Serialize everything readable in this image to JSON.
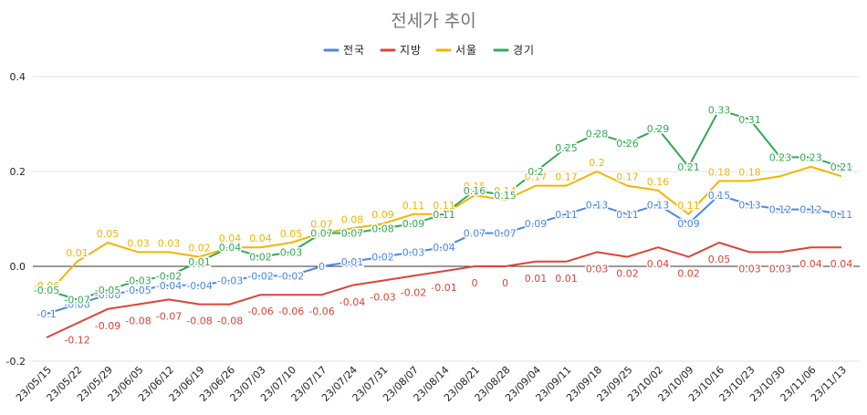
{
  "chart_data": {
    "type": "line",
    "title": "전세가 추이",
    "xlabel": "",
    "ylabel": "",
    "ylim": [
      -0.2,
      0.4
    ],
    "yticks": [
      -0.2,
      0.0,
      0.2,
      0.4
    ],
    "ytick_labels": [
      "-0.2",
      "0.0",
      "0.2",
      "0.4"
    ],
    "grid": true,
    "legend_position": "top-center",
    "categories": [
      "23/05/15",
      "23/05/22",
      "23/05/29",
      "23/06/05",
      "23/06/12",
      "23/06/19",
      "23/06/26",
      "23/07/03",
      "23/07/10",
      "23/07/17",
      "23/07/24",
      "23/07/31",
      "23/08/07",
      "23/08/14",
      "23/08/21",
      "23/08/28",
      "23/09/04",
      "23/09/11",
      "23/09/18",
      "23/09/25",
      "23/10/02",
      "23/10/09",
      "23/10/16",
      "23/10/23",
      "23/10/30",
      "23/11/06",
      "23/11/13"
    ],
    "series": [
      {
        "name": "전국",
        "color": "#4a86e8",
        "values": [
          -0.1,
          -0.08,
          -0.06,
          -0.05,
          -0.04,
          -0.04,
          -0.03,
          -0.02,
          -0.02,
          0,
          0.01,
          0.02,
          0.03,
          0.04,
          0.07,
          0.07,
          0.09,
          0.11,
          0.13,
          0.11,
          0.13,
          0.09,
          0.15,
          0.13,
          0.12,
          0.12,
          0.11
        ],
        "labels": [
          "-0.1",
          "-0.08",
          "-0.06",
          "-0.05",
          "-0.04",
          "-0.04",
          "-0.03",
          "-0.02",
          "-0.02",
          "0",
          "0.01",
          "0.02",
          "0.03",
          "0.04",
          "0.07",
          "0.07",
          "0.09",
          "0.11",
          "0.13",
          "0.11",
          "0.13",
          "0.09",
          "0.15",
          "0.13",
          "0.12",
          "0.12",
          "0.11"
        ]
      },
      {
        "name": "지방",
        "color": "#db4437",
        "values": [
          -0.15,
          -0.12,
          -0.09,
          -0.08,
          -0.07,
          -0.08,
          -0.08,
          -0.06,
          -0.06,
          -0.06,
          -0.04,
          -0.03,
          -0.02,
          -0.01,
          0,
          0,
          0.01,
          0.01,
          0.03,
          0.02,
          0.04,
          0.02,
          0.05,
          0.03,
          0.03,
          0.04,
          0.04
        ],
        "labels": [
          "",
          "-0.12",
          "-0.09",
          "-0.08",
          "-0.07",
          "-0.08",
          "-0.08",
          "-0.06",
          "-0.06",
          "-0.06",
          "-0.04",
          "-0.03",
          "-0.02",
          "-0.01",
          "0",
          "0",
          "0.01",
          "0.01",
          "0.03",
          "0.02",
          "0.04",
          "0.02",
          "0.05",
          "0.03",
          "0.03",
          "0.04",
          "0.04"
        ]
      },
      {
        "name": "서울",
        "color": "#f4b400",
        "values": [
          -0.06,
          0.01,
          0.05,
          0.03,
          0.03,
          0.02,
          0.04,
          0.04,
          0.05,
          0.07,
          0.08,
          0.09,
          0.11,
          0.11,
          0.15,
          0.14,
          0.17,
          0.17,
          0.2,
          0.17,
          0.16,
          0.11,
          0.18,
          0.18,
          0.19,
          0.21,
          0.19
        ],
        "labels": [
          "-0.06",
          "0.01",
          "0.05",
          "0.03",
          "0.03",
          "0.02",
          "0.04",
          "0.04",
          "0.05",
          "0.07",
          "0.08",
          "0.09",
          "0.11",
          "0.11",
          "0.15",
          "0.14",
          "0.17",
          "0.17",
          "0.2",
          "0.17",
          "0.16",
          "0.11",
          "0.18",
          "0.18",
          "",
          "0.21",
          "0.19"
        ]
      },
      {
        "name": "경기",
        "color": "#34a853",
        "values": [
          -0.05,
          -0.07,
          -0.05,
          -0.03,
          -0.02,
          0.01,
          0.04,
          0.02,
          0.03,
          0.07,
          0.07,
          0.08,
          0.09,
          0.11,
          0.16,
          0.15,
          0.2,
          0.25,
          0.28,
          0.26,
          0.29,
          0.21,
          0.33,
          0.31,
          0.23,
          0.23,
          0.21
        ],
        "labels": [
          "-0.05",
          "-0.07",
          "-0.05",
          "-0.03",
          "-0.02",
          "0.01",
          "0.04",
          "0.02",
          "0.03",
          "0.07",
          "0.07",
          "0.08",
          "0.09",
          "0.11",
          "0.16",
          "0.15",
          "0.2",
          "0.25",
          "0.28",
          "0.26",
          "0.29",
          "0.21",
          "0.33",
          "0.31",
          "0.23",
          "0.23",
          "0.21"
        ]
      }
    ]
  }
}
